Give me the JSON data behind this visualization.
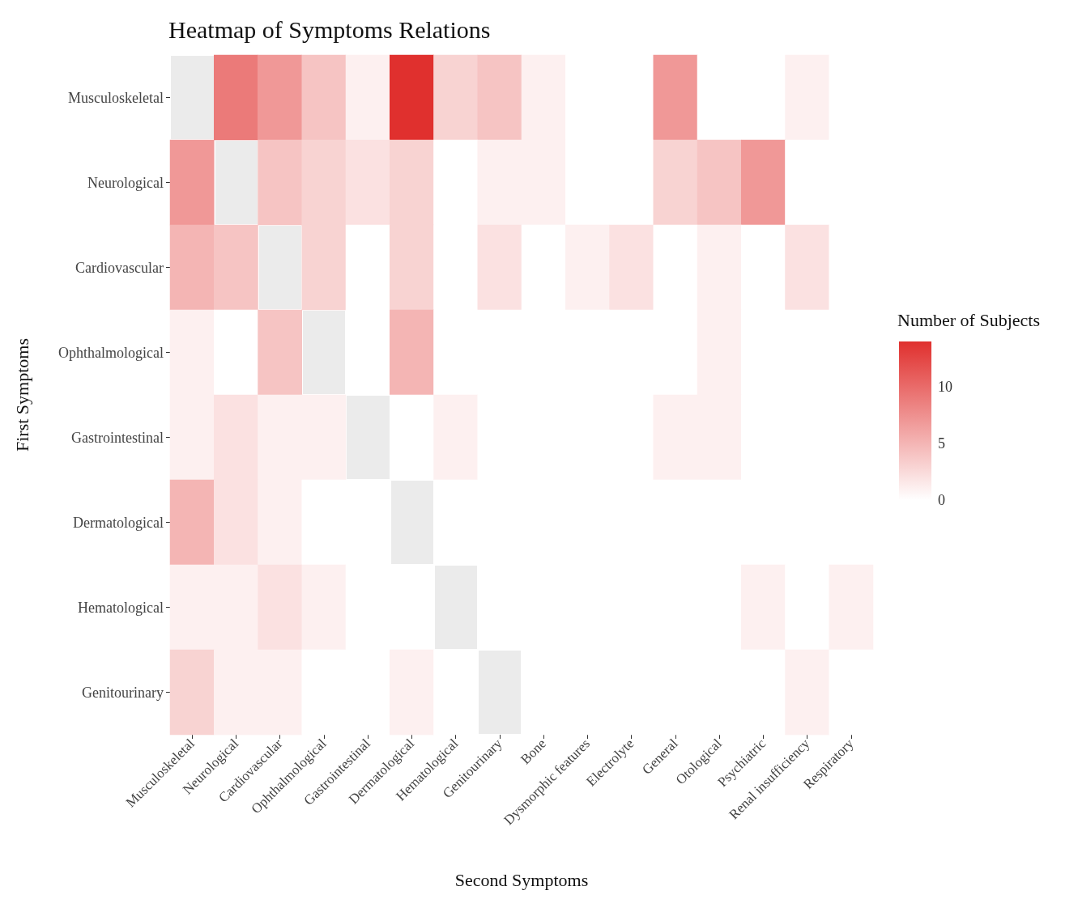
{
  "chart_data": {
    "type": "heatmap",
    "title": "Heatmap of Symptoms Relations",
    "xlabel": "Second Symptoms",
    "ylabel": "First Symptoms",
    "clabel": "Number of Subjects",
    "categories": [
      "Musculoskeletal",
      "Neurological",
      "Cardiovascular",
      "Ophthalmological",
      "Gastrointestinal",
      "Dermatological",
      "Hematological",
      "Genitourinary",
      "Bone",
      "Dysmorphic features",
      "Electrolyte",
      "General",
      "Otological",
      "Psychiatric",
      "Renal insufficiency",
      "Respiratory"
    ],
    "y_categories": [
      "Musculoskeletal",
      "Neurological",
      "Cardiovascular",
      "Ophthalmological",
      "Gastrointestinal",
      "Dermatological",
      "Hematological",
      "Genitourinary"
    ],
    "cells": [
      [
        null,
        9,
        7,
        4,
        1,
        14,
        3,
        4,
        1,
        0,
        0,
        7,
        0,
        0,
        1,
        0
      ],
      [
        7,
        null,
        4,
        3,
        2,
        3,
        0,
        1,
        1,
        0,
        0,
        3,
        4,
        7,
        0,
        0
      ],
      [
        5,
        4,
        null,
        3,
        0,
        3,
        0,
        2,
        0,
        1,
        2,
        0,
        1,
        0,
        2,
        0
      ],
      [
        1,
        0,
        4,
        null,
        0,
        5,
        0,
        0,
        0,
        0,
        0,
        0,
        1,
        0,
        0,
        0
      ],
      [
        1,
        2,
        1,
        1,
        null,
        0,
        1,
        0,
        0,
        0,
        0,
        1,
        1,
        0,
        0,
        0
      ],
      [
        5,
        2,
        1,
        0,
        0,
        null,
        0,
        0,
        0,
        0,
        0,
        0,
        0,
        0,
        0,
        0
      ],
      [
        1,
        1,
        2,
        1,
        0,
        0,
        null,
        0,
        0,
        0,
        0,
        0,
        0,
        1,
        0,
        1
      ],
      [
        3,
        1,
        1,
        0,
        0,
        1,
        0,
        null,
        0,
        0,
        0,
        0,
        0,
        0,
        1,
        0
      ]
    ],
    "color": "#e0302e",
    "clim": [
      0,
      14
    ],
    "cticks": [
      0,
      5,
      10
    ],
    "grid": true
  }
}
